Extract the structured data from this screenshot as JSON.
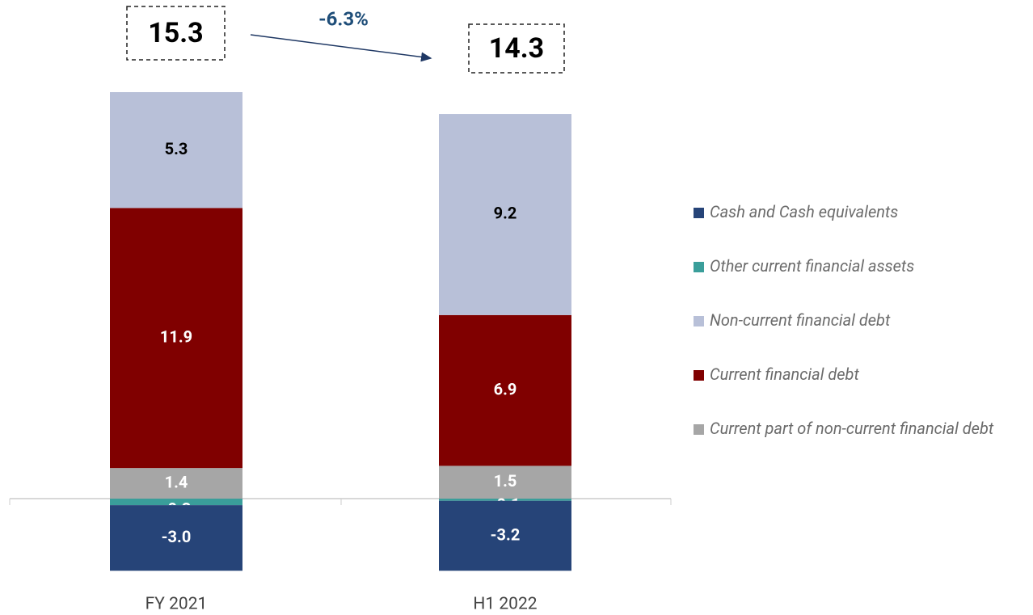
{
  "chart_data": {
    "type": "stacked_bar",
    "categories": [
      "FY 2021",
      "H1 2022"
    ],
    "series": [
      {
        "name": "Cash and Cash equivalents",
        "color": "#264478",
        "values": [
          -3.0,
          -3.2
        ],
        "value_labels": [
          "-3.0",
          "-3.2"
        ]
      },
      {
        "name": "Other current financial assets",
        "color": "#3a9e9a",
        "values": [
          -0.3,
          -0.1
        ],
        "value_labels": [
          "-0.3",
          "-0.1"
        ]
      },
      {
        "name": "Non-current financial debt",
        "color": "#b8c0d8",
        "values": [
          5.3,
          9.2
        ],
        "value_labels": [
          "5.3",
          "9.2"
        ]
      },
      {
        "name": "Current financial debt",
        "color": "#800000",
        "values": [
          11.9,
          6.9
        ],
        "value_labels": [
          "11.9",
          "6.9"
        ]
      },
      {
        "name": "Current part of non-current financial debt",
        "color": "#a6a6a6",
        "values": [
          1.4,
          1.5
        ],
        "value_labels": [
          "1.4",
          "1.5"
        ]
      }
    ],
    "totals": [
      15.3,
      14.3
    ],
    "annotation": "-6.3%"
  }
}
